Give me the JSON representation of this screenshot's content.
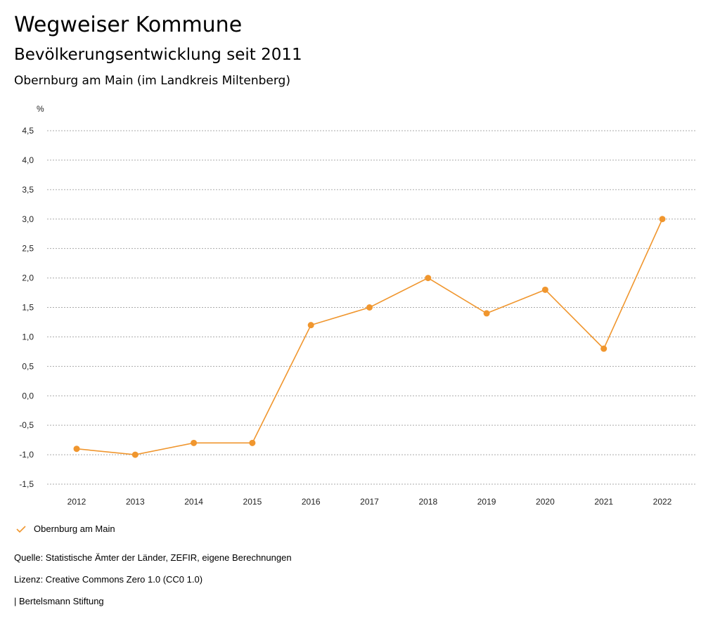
{
  "header": {
    "title": "Wegweiser Kommune",
    "subtitle": "Bevölkerungsentwicklung seit 2011",
    "region": "Obernburg am Main (im Landkreis Miltenberg)"
  },
  "chart_data": {
    "type": "line",
    "title": "Bevölkerungsentwicklung seit 2011",
    "ylabel": "%",
    "xlabel": "",
    "ylim": [
      -1.5,
      4.5
    ],
    "yticks": [
      "4,5",
      "4,0",
      "3,5",
      "3,0",
      "2,5",
      "2,0",
      "1,5",
      "1,0",
      "0,5",
      "0,0",
      "-0,5",
      "-1,0",
      "-1,5"
    ],
    "ytick_values": [
      4.5,
      4.0,
      3.5,
      3.0,
      2.5,
      2.0,
      1.5,
      1.0,
      0.5,
      0.0,
      -0.5,
      -1.0,
      -1.5
    ],
    "categories": [
      "2012",
      "2013",
      "2014",
      "2015",
      "2016",
      "2017",
      "2018",
      "2019",
      "2020",
      "2021",
      "2022"
    ],
    "series": [
      {
        "name": "Obernburg am Main",
        "color": "#f0962e",
        "values": [
          -0.9,
          -1.0,
          -0.8,
          -0.8,
          1.2,
          1.5,
          2.0,
          1.4,
          1.8,
          0.8,
          3.0
        ]
      }
    ],
    "grid": true,
    "legend": "bottom-left"
  },
  "footer": {
    "source": "Quelle: Statistische Ämter der Länder, ZEFIR, eigene Berechnungen",
    "license": "Lizenz: Creative Commons Zero 1.0 (CC0 1.0)",
    "brand": "| Bertelsmann Stiftung"
  }
}
